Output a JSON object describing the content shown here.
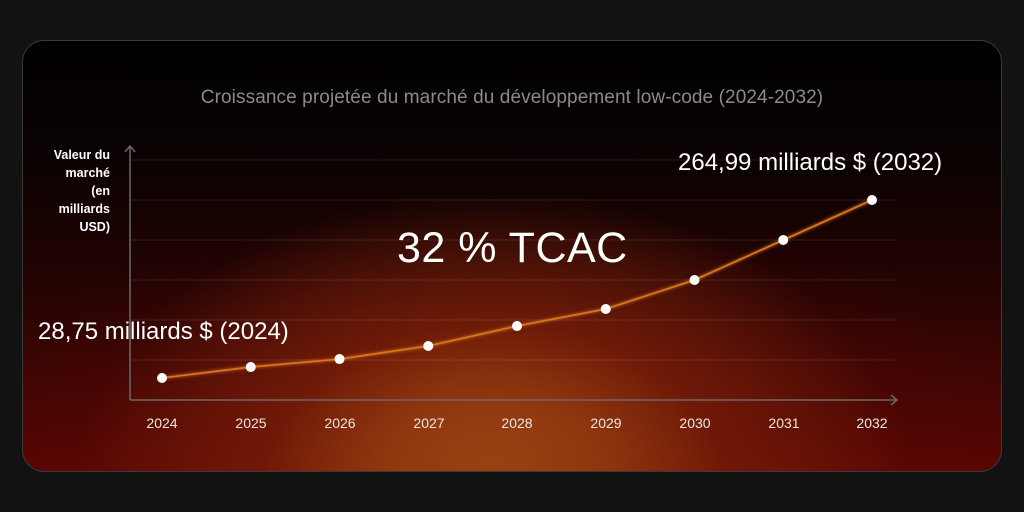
{
  "chart_data": {
    "type": "line",
    "title": "Croissance projetée du marché du développement low-code (2024-2032)",
    "xlabel": "",
    "ylabel": "Valeur du marché (en milliards USD)",
    "categories": [
      "2024",
      "2025",
      "2026",
      "2027",
      "2028",
      "2029",
      "2030",
      "2031",
      "2032"
    ],
    "series": [
      {
        "name": "Valeur du marché (milliards USD)",
        "values": [
          28.75,
          43.3,
          53.9,
          71.2,
          97.7,
          120.3,
          158.8,
          211.9,
          264.99
        ]
      }
    ],
    "annotations": [
      {
        "text": "28,75 milliards $ (2024)",
        "x": "2024",
        "y": 28.75
      },
      {
        "text": "264,99 milliards $ (2032)",
        "x": "2032",
        "y": 264.99
      },
      {
        "text": "32 % TCAC"
      }
    ],
    "grid": true,
    "y_ticks_shown": false,
    "legend": "none",
    "colors": {
      "line": "#d9731a",
      "points": "#ffffff",
      "axis": "#6a6a6a",
      "grid": "#3a2a2a"
    }
  },
  "chart": {
    "title": "Croissance projetée du marché du développement low-code (2024-2032)",
    "ylabel_lines": [
      "Valeur du",
      "marché",
      "(en",
      "milliards",
      "USD)"
    ],
    "callout_start": "28,75 milliards $ (2024)",
    "callout_end": "264,99 milliards $ (2032)",
    "cagr": "32 % TCAC",
    "xticks": [
      "2024",
      "2025",
      "2026",
      "2027",
      "2028",
      "2029",
      "2030",
      "2031",
      "2032"
    ]
  }
}
